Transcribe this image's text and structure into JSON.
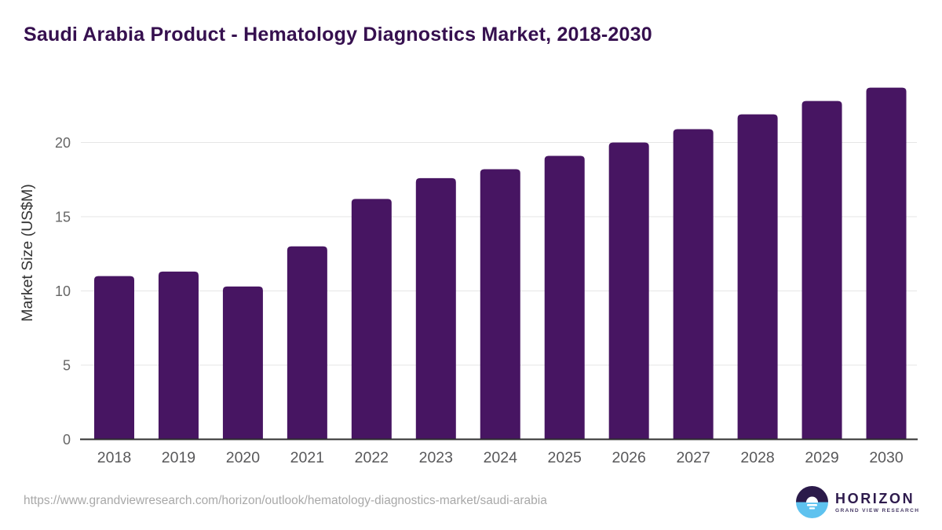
{
  "page": {
    "title": "Saudi Arabia Product - Hematology Diagnostics Market, 2018-2030",
    "source_url": "https://www.grandviewresearch.com/horizon/outlook/hematology-diagnostics-market/saudi-arabia"
  },
  "logo": {
    "name": "HORIZON",
    "tagline": "GRAND VIEW RESEARCH"
  },
  "chart_data": {
    "type": "bar",
    "title": "Saudi Arabia Product - Hematology Diagnostics Market, 2018-2030",
    "categories": [
      "2018",
      "2019",
      "2020",
      "2021",
      "2022",
      "2023",
      "2024",
      "2025",
      "2026",
      "2027",
      "2028",
      "2029",
      "2030"
    ],
    "values": [
      11.0,
      11.3,
      10.3,
      13.0,
      16.2,
      17.6,
      18.2,
      19.1,
      20.0,
      20.9,
      21.9,
      22.8,
      23.7
    ],
    "xlabel": "",
    "ylabel": "Market Size (US$M)",
    "yticks": [
      0,
      5,
      10,
      15,
      20
    ],
    "ylim": [
      0,
      24
    ],
    "grid": "horizontal",
    "legend": "none",
    "colors": {
      "bar": "#471562",
      "title": "#36104f",
      "grid": "#e6e6e6",
      "axis_line": "#2f2f2f",
      "y_tick": "#666666",
      "x_tick": "#58585a",
      "y_axis_title": "#333333",
      "url": "#a8a8a8",
      "logo_dark": "#2b1a4a",
      "logo_blue": "#5ec2ef",
      "logo_text": "#2e1b4d",
      "logo_tagline": "#473a66"
    }
  }
}
